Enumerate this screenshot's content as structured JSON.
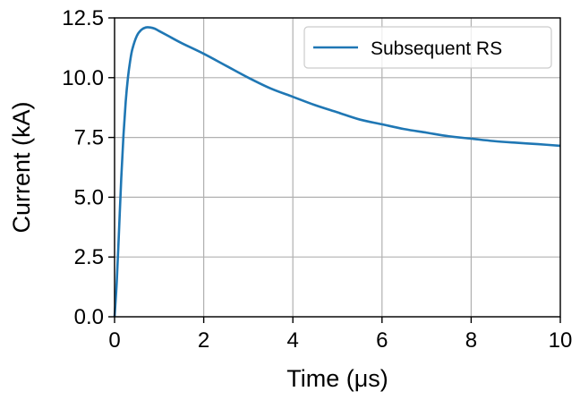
{
  "chart_data": {
    "type": "line",
    "title": "",
    "xlabel": "Time (μs)",
    "ylabel": "Current (kA)",
    "xlim": [
      0,
      10
    ],
    "ylim": [
      0,
      12.5
    ],
    "xticks": [
      0,
      2,
      4,
      6,
      8,
      10
    ],
    "xtick_labels": [
      "0",
      "2",
      "4",
      "6",
      "8",
      "10"
    ],
    "yticks": [
      0,
      2.5,
      5,
      7.5,
      10,
      12.5
    ],
    "ytick_labels": [
      "0.0",
      "2.5",
      "5.0",
      "7.5",
      "10.0",
      "12.5"
    ],
    "grid": true,
    "legend": {
      "position": "top-right",
      "entries": [
        "Subsequent RS"
      ]
    },
    "series": [
      {
        "name": "Subsequent RS",
        "color": "#1f77b4",
        "x": [
          0,
          0.05,
          0.1,
          0.15,
          0.2,
          0.25,
          0.3,
          0.35,
          0.4,
          0.5,
          0.6,
          0.7,
          0.8,
          0.9,
          1.0,
          1.2,
          1.5,
          2.0,
          2.5,
          3.0,
          3.5,
          4.0,
          4.5,
          5.0,
          5.5,
          6.0,
          6.5,
          7.0,
          7.5,
          8.0,
          8.5,
          9.0,
          9.5,
          10.0
        ],
        "values": [
          0,
          1.5,
          3.6,
          5.8,
          7.6,
          9.0,
          10.0,
          10.7,
          11.2,
          11.75,
          12.0,
          12.1,
          12.1,
          12.05,
          11.95,
          11.75,
          11.45,
          11.0,
          10.5,
          10.0,
          9.55,
          9.2,
          8.85,
          8.55,
          8.25,
          8.05,
          7.85,
          7.7,
          7.55,
          7.45,
          7.35,
          7.28,
          7.22,
          7.15
        ]
      }
    ]
  }
}
